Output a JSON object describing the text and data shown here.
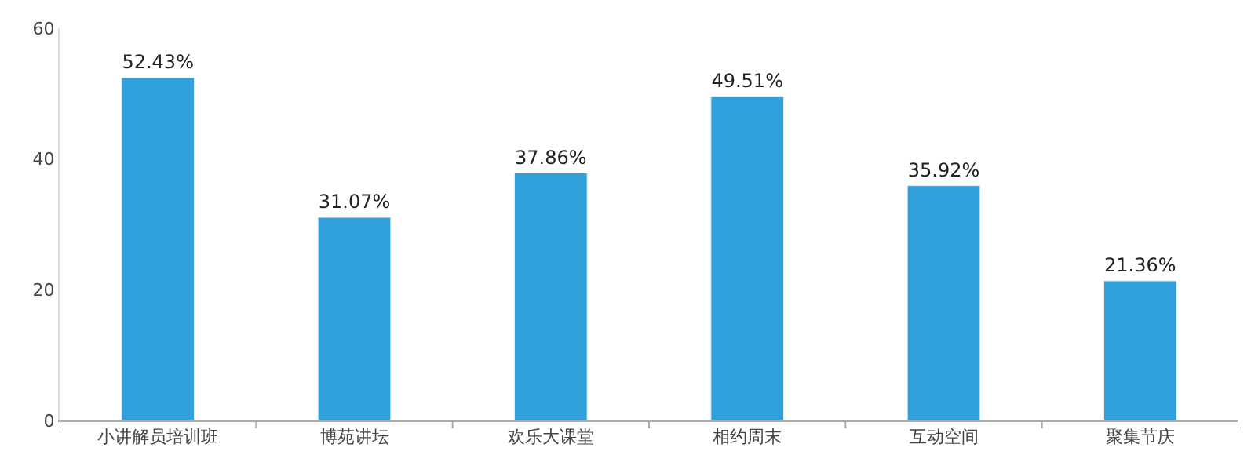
{
  "chart_data": {
    "type": "bar",
    "categories": [
      "小讲解员培训班",
      "博苑讲坛",
      "欢乐大课堂",
      "相约周末",
      "互动空间",
      "聚集节庆"
    ],
    "values": [
      52.43,
      31.07,
      37.86,
      49.51,
      35.92,
      21.36
    ],
    "value_labels": [
      "52.43%",
      "31.07%",
      "37.86%",
      "49.51%",
      "35.92%",
      "21.36%"
    ],
    "color": "#30a0da",
    "ylim": [
      0,
      60
    ],
    "yticks": [
      0,
      20,
      40,
      60
    ]
  }
}
